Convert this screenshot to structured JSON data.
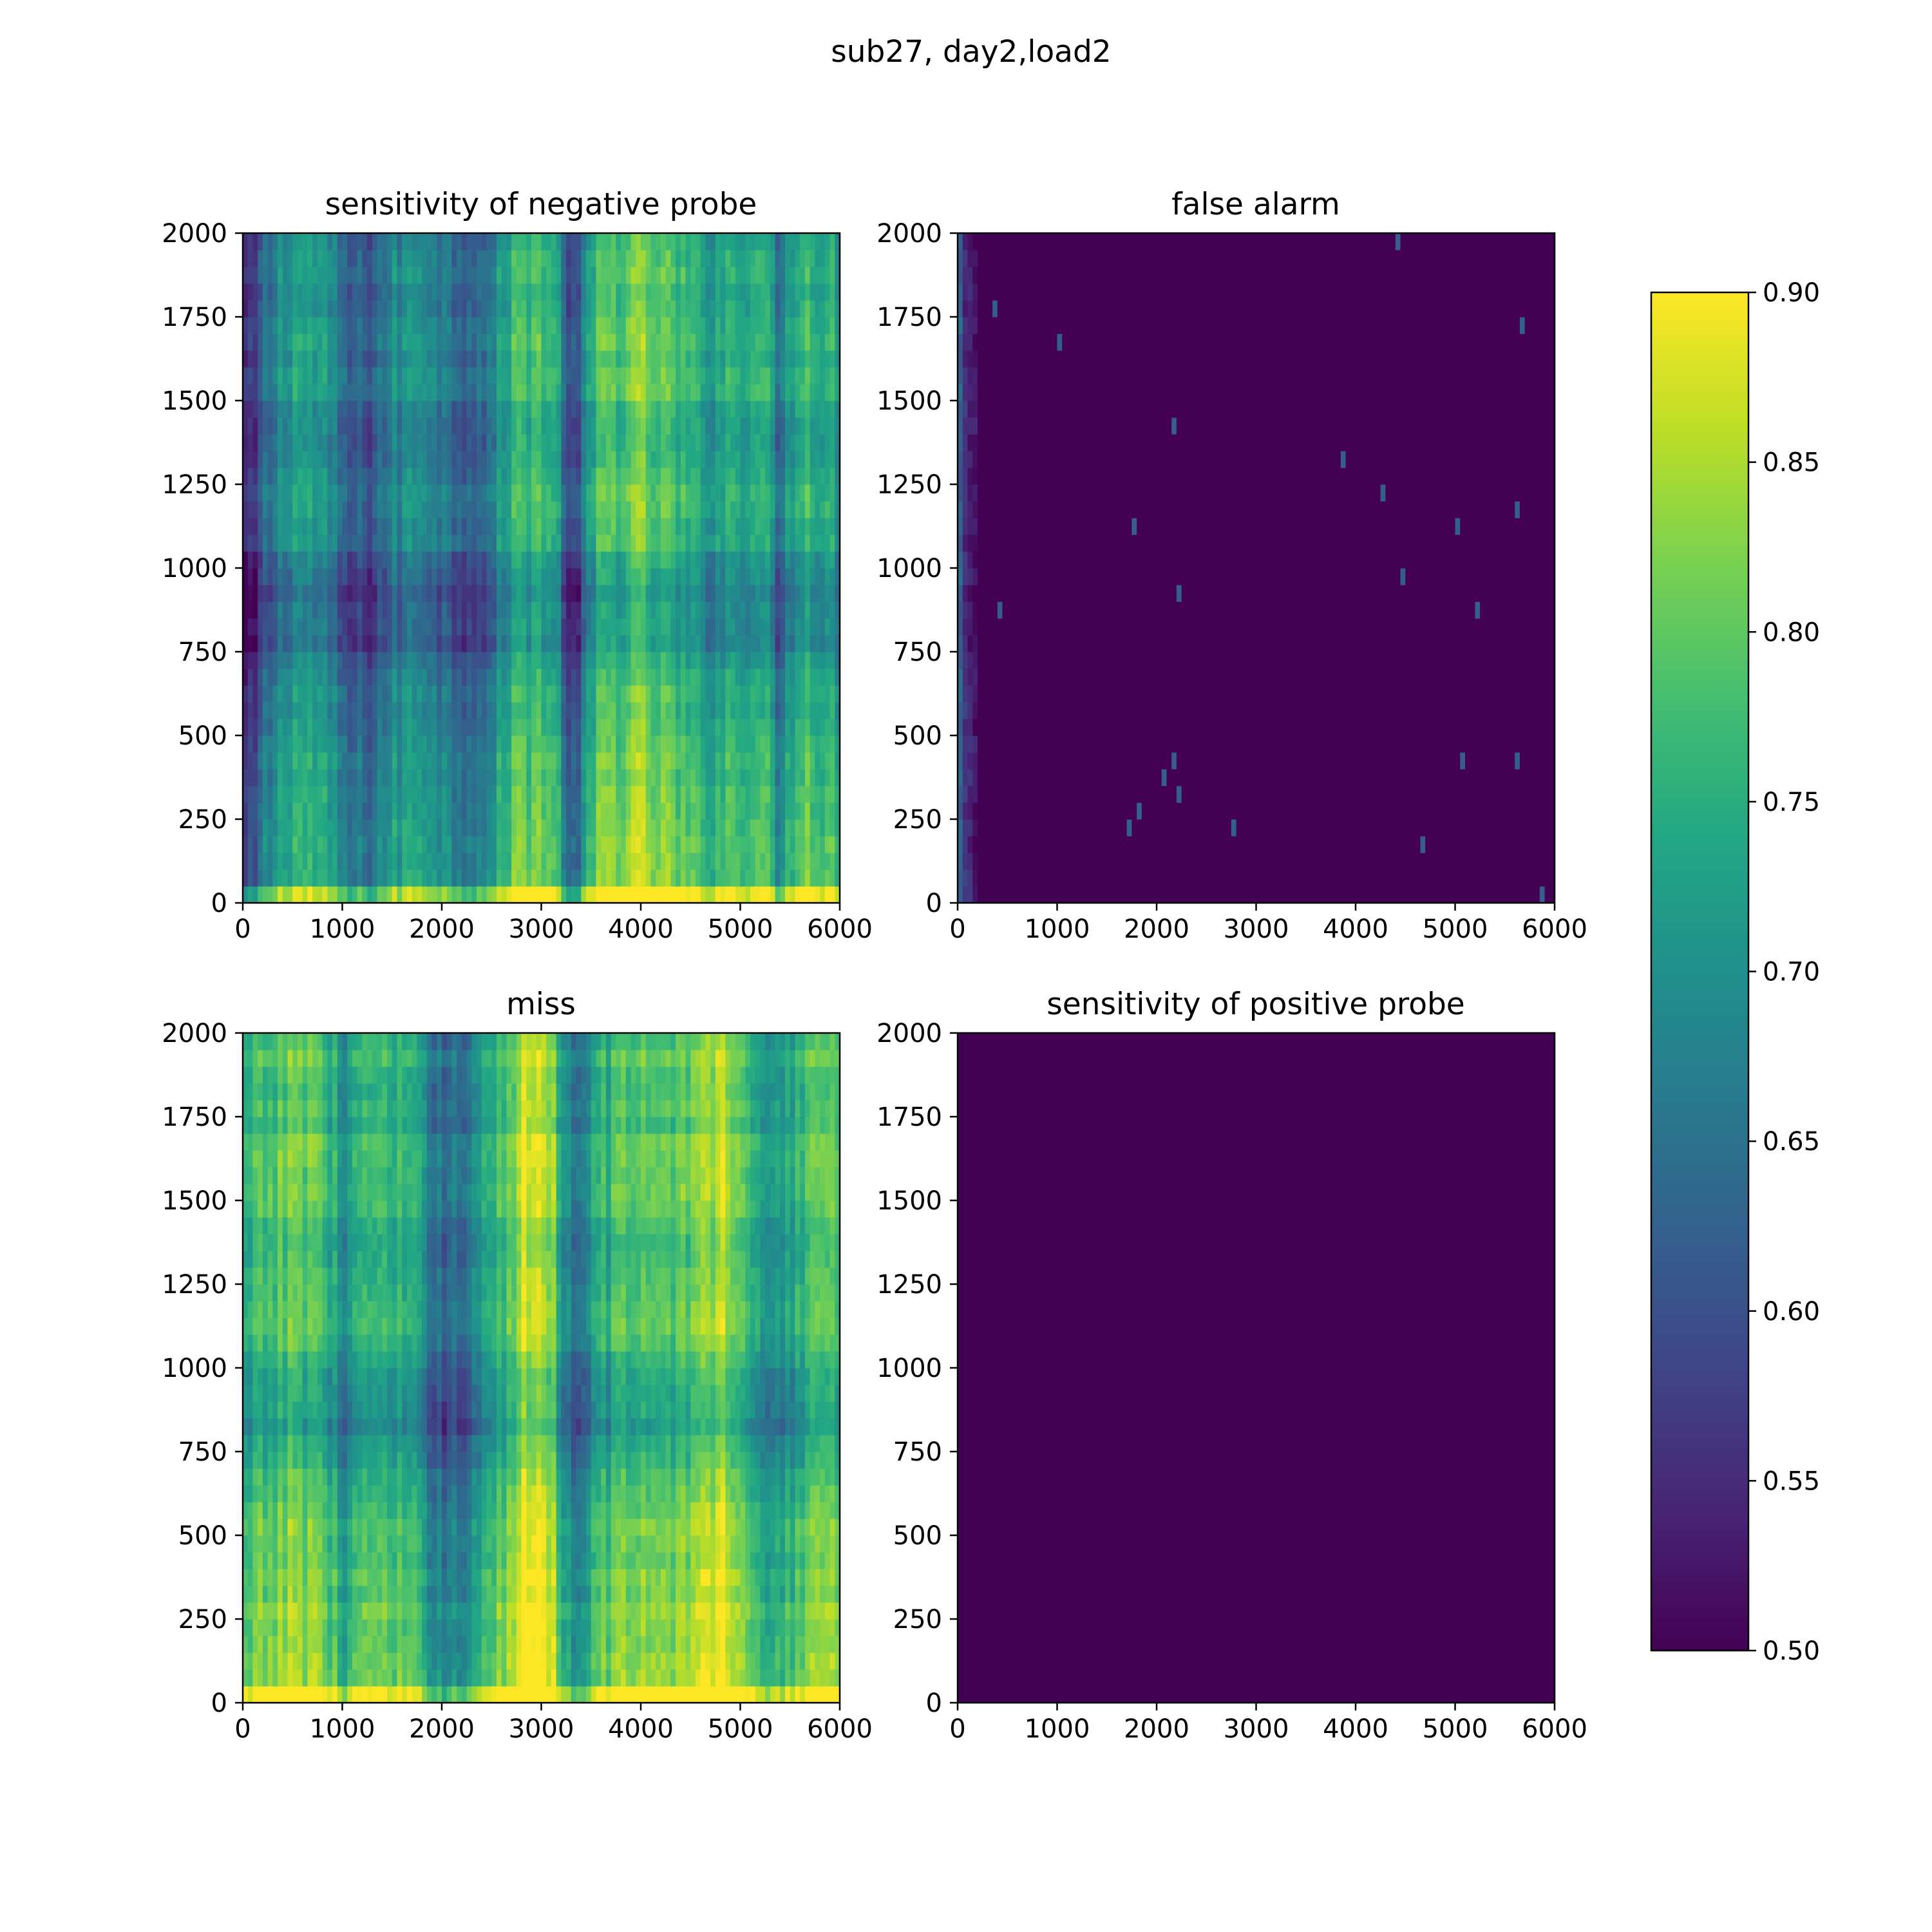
{
  "title": "sub27, day2,load2",
  "chart_data": {
    "type": "heatmap",
    "colormap": "viridis",
    "colorbar": {
      "range": [
        0.5,
        0.9
      ],
      "ticks": [
        0.5,
        0.55,
        0.6,
        0.65,
        0.7,
        0.75,
        0.8,
        0.85,
        0.9
      ],
      "tick_labels": [
        "0.50",
        "0.55",
        "0.60",
        "0.65",
        "0.70",
        "0.75",
        "0.80",
        "0.85",
        "0.90"
      ]
    },
    "panels": [
      {
        "title": "sensitivity of negative probe",
        "xlim": [
          0,
          6000
        ],
        "ylim": [
          0,
          2000
        ],
        "xticks": [
          0,
          1000,
          2000,
          3000,
          4000,
          5000,
          6000
        ],
        "yticks": [
          0,
          250,
          500,
          750,
          1000,
          1250,
          1500,
          1750,
          2000
        ],
        "column_profile": [
          [
            0,
            0.55
          ],
          [
            100,
            0.55
          ],
          [
            200,
            0.64
          ],
          [
            500,
            0.75
          ],
          [
            800,
            0.72
          ],
          [
            1100,
            0.62
          ],
          [
            1300,
            0.64
          ],
          [
            1500,
            0.69
          ],
          [
            1800,
            0.73
          ],
          [
            2100,
            0.66
          ],
          [
            2500,
            0.67
          ],
          [
            2700,
            0.78
          ],
          [
            3000,
            0.8
          ],
          [
            3200,
            0.72
          ],
          [
            3300,
            0.56
          ],
          [
            3400,
            0.66
          ],
          [
            3600,
            0.8
          ],
          [
            4000,
            0.82
          ],
          [
            4300,
            0.79
          ],
          [
            4600,
            0.74
          ],
          [
            4900,
            0.76
          ],
          [
            5200,
            0.78
          ],
          [
            5400,
            0.67
          ],
          [
            5600,
            0.8
          ],
          [
            6000,
            0.74
          ]
        ],
        "row_profile": [
          [
            0,
            0.14
          ],
          [
            40,
            0.14
          ],
          [
            60,
            0.04
          ],
          [
            250,
            0.02
          ],
          [
            500,
            0.0
          ],
          [
            650,
            -0.02
          ],
          [
            750,
            -0.06
          ],
          [
            900,
            -0.08
          ],
          [
            1000,
            -0.05
          ],
          [
            1100,
            -0.01
          ],
          [
            1250,
            0.0
          ],
          [
            1400,
            -0.03
          ],
          [
            1600,
            0.0
          ],
          [
            1750,
            -0.02
          ],
          [
            1900,
            -0.01
          ],
          [
            2000,
            -0.02
          ]
        ]
      },
      {
        "title": "false alarm",
        "xlim": [
          0,
          6000
        ],
        "ylim": [
          0,
          2000
        ],
        "xticks": [
          0,
          1000,
          2000,
          3000,
          4000,
          5000,
          6000
        ],
        "yticks": [
          0,
          250,
          500,
          750,
          1000,
          1250,
          1500,
          1750,
          2000
        ],
        "column_profile": [
          [
            0,
            0.62
          ],
          [
            50,
            0.6
          ],
          [
            150,
            0.5
          ],
          [
            6000,
            0.5
          ]
        ],
        "row_profile": [
          [
            0,
            0.0
          ],
          [
            2000,
            0.0
          ]
        ]
      },
      {
        "title": "miss",
        "xlim": [
          0,
          6000
        ],
        "ylim": [
          0,
          2000
        ],
        "xticks": [
          0,
          1000,
          2000,
          3000,
          4000,
          5000,
          6000
        ],
        "yticks": [
          0,
          250,
          500,
          750,
          1000,
          1250,
          1500,
          1750,
          2000
        ],
        "column_profile": [
          [
            0,
            0.74
          ],
          [
            300,
            0.8
          ],
          [
            700,
            0.82
          ],
          [
            1000,
            0.72
          ],
          [
            1300,
            0.78
          ],
          [
            1700,
            0.74
          ],
          [
            2100,
            0.64
          ],
          [
            2300,
            0.7
          ],
          [
            2600,
            0.78
          ],
          [
            2900,
            0.9
          ],
          [
            3100,
            0.86
          ],
          [
            3300,
            0.66
          ],
          [
            3500,
            0.74
          ],
          [
            3800,
            0.8
          ],
          [
            4200,
            0.78
          ],
          [
            4600,
            0.84
          ],
          [
            4800,
            0.87
          ],
          [
            5200,
            0.76
          ],
          [
            5400,
            0.7
          ],
          [
            5700,
            0.82
          ],
          [
            6000,
            0.8
          ]
        ],
        "row_profile": [
          [
            0,
            0.14
          ],
          [
            40,
            0.14
          ],
          [
            60,
            0.05
          ],
          [
            250,
            0.03
          ],
          [
            500,
            0.01
          ],
          [
            650,
            -0.02
          ],
          [
            750,
            -0.06
          ],
          [
            900,
            -0.08
          ],
          [
            1000,
            -0.05
          ],
          [
            1100,
            -0.01
          ],
          [
            1250,
            0.0
          ],
          [
            1400,
            -0.03
          ],
          [
            1600,
            0.01
          ],
          [
            1750,
            -0.02
          ],
          [
            1900,
            0.0
          ],
          [
            2000,
            -0.01
          ]
        ]
      },
      {
        "title": "sensitivity of positive probe",
        "xlim": [
          0,
          6000
        ],
        "ylim": [
          0,
          2000
        ],
        "xticks": [
          0,
          1000,
          2000,
          3000,
          4000,
          5000,
          6000
        ],
        "yticks": [
          0,
          250,
          500,
          750,
          1000,
          1250,
          1500,
          1750,
          2000
        ],
        "column_profile": [
          [
            0,
            0.5
          ],
          [
            6000,
            0.5
          ]
        ],
        "row_profile": [
          [
            0,
            0.0
          ],
          [
            2000,
            0.0
          ]
        ]
      }
    ]
  }
}
